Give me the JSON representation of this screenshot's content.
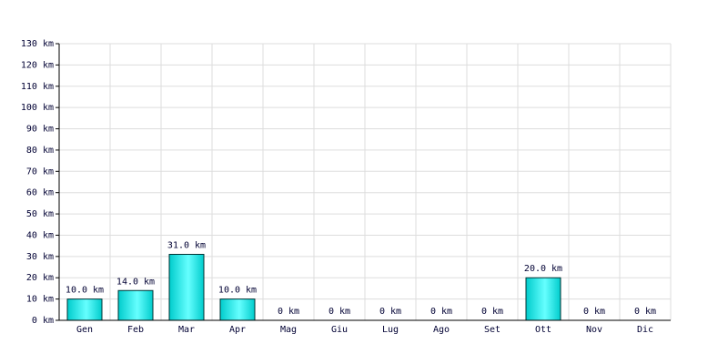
{
  "chart_data": {
    "type": "bar",
    "categories": [
      "Gen",
      "Feb",
      "Mar",
      "Apr",
      "Mag",
      "Giu",
      "Lug",
      "Ago",
      "Set",
      "Ott",
      "Nov",
      "Dic"
    ],
    "values": [
      10,
      14,
      31,
      10,
      0,
      0,
      0,
      0,
      0,
      20,
      0,
      0
    ],
    "value_labels": [
      "10.0 km",
      "14.0 km",
      "31.0 km",
      "10.0 km",
      "0 km",
      "0 km",
      "0 km",
      "0 km",
      "0 km",
      "20.0 km",
      "0 km",
      "0 km"
    ],
    "color": "#00cccc",
    "ylim": [
      0,
      130
    ],
    "yticks": [
      {
        "value": 0,
        "label": "0 km"
      },
      {
        "value": 10,
        "label": "10 km"
      },
      {
        "value": 20,
        "label": "20 km"
      },
      {
        "value": 30,
        "label": "30 km"
      },
      {
        "value": 40,
        "label": "40 km"
      },
      {
        "value": 50,
        "label": "50 km"
      },
      {
        "value": 60,
        "label": "60 km"
      },
      {
        "value": 70,
        "label": "70 km"
      },
      {
        "value": 80,
        "label": "80 km"
      },
      {
        "value": 90,
        "label": "90 km"
      },
      {
        "value": 100,
        "label": "100 km"
      },
      {
        "value": 110,
        "label": "110 km"
      },
      {
        "value": 120,
        "label": "120 km"
      },
      {
        "value": 130,
        "label": "130 km"
      }
    ],
    "grid": true
  }
}
